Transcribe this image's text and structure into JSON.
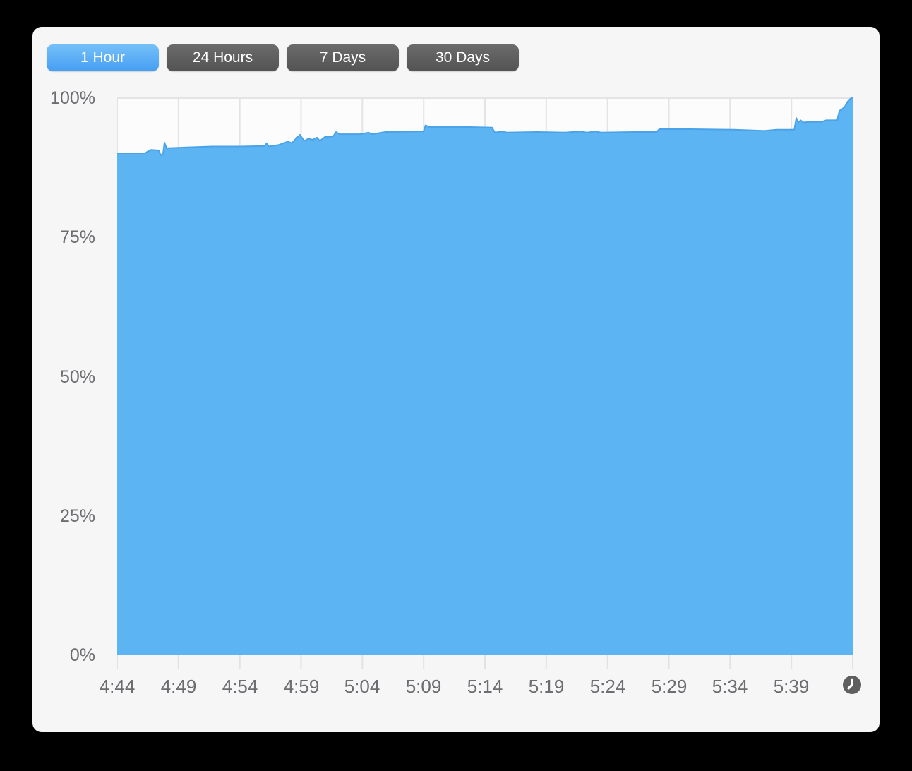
{
  "tabs": {
    "items": [
      {
        "label": "1 Hour",
        "selected": true
      },
      {
        "label": "24 Hours",
        "selected": false
      },
      {
        "label": "7 Days",
        "selected": false
      },
      {
        "label": "30 Days",
        "selected": false
      }
    ]
  },
  "chart_data": {
    "type": "area",
    "title": "",
    "series_name": "percentage-over-time",
    "x_ticks": [
      "4:44",
      "4:49",
      "4:54",
      "4:59",
      "5:04",
      "5:09",
      "5:14",
      "5:19",
      "5:24",
      "5:29",
      "5:34",
      "5:39"
    ],
    "y_ticks_top_to_bottom": [
      "100%",
      "75%",
      "50%",
      "25%",
      "0%"
    ],
    "ylim": [
      0,
      100
    ],
    "xlim_minutes": [
      0,
      60
    ],
    "x_tick_interval_minutes": 5,
    "grid": "vertical-only",
    "points": [
      {
        "m": 0.0,
        "pct": 90.0
      },
      {
        "m": 2.25,
        "pct": 90.0
      },
      {
        "m": 2.59,
        "pct": 90.4
      },
      {
        "m": 2.76,
        "pct": 90.6
      },
      {
        "m": 3.4,
        "pct": 90.5
      },
      {
        "m": 3.57,
        "pct": 89.6
      },
      {
        "m": 3.74,
        "pct": 89.9
      },
      {
        "m": 3.86,
        "pct": 91.9
      },
      {
        "m": 4.03,
        "pct": 90.9
      },
      {
        "m": 5.12,
        "pct": 91.0
      },
      {
        "m": 7.72,
        "pct": 91.2
      },
      {
        "m": 10.02,
        "pct": 91.2
      },
      {
        "m": 12.03,
        "pct": 91.3
      },
      {
        "m": 12.21,
        "pct": 91.8
      },
      {
        "m": 12.38,
        "pct": 91.2
      },
      {
        "m": 13.19,
        "pct": 91.5
      },
      {
        "m": 13.94,
        "pct": 92.1
      },
      {
        "m": 14.22,
        "pct": 91.8
      },
      {
        "m": 14.63,
        "pct": 92.7
      },
      {
        "m": 14.91,
        "pct": 93.3
      },
      {
        "m": 15.26,
        "pct": 92.2
      },
      {
        "m": 15.6,
        "pct": 92.6
      },
      {
        "m": 15.95,
        "pct": 92.4
      },
      {
        "m": 16.3,
        "pct": 92.8
      },
      {
        "m": 16.53,
        "pct": 92.2
      },
      {
        "m": 16.93,
        "pct": 92.9
      },
      {
        "m": 17.62,
        "pct": 93.0
      },
      {
        "m": 17.85,
        "pct": 93.8
      },
      {
        "m": 18.14,
        "pct": 93.4
      },
      {
        "m": 19.81,
        "pct": 93.4
      },
      {
        "m": 20.5,
        "pct": 93.7
      },
      {
        "m": 20.79,
        "pct": 93.4
      },
      {
        "m": 21.88,
        "pct": 93.8
      },
      {
        "m": 24.99,
        "pct": 93.9
      },
      {
        "m": 25.16,
        "pct": 95.0
      },
      {
        "m": 25.45,
        "pct": 94.7
      },
      {
        "m": 28.45,
        "pct": 94.7
      },
      {
        "m": 30.58,
        "pct": 94.6
      },
      {
        "m": 30.81,
        "pct": 93.7
      },
      {
        "m": 31.44,
        "pct": 93.9
      },
      {
        "m": 31.79,
        "pct": 93.7
      },
      {
        "m": 34.21,
        "pct": 93.8
      },
      {
        "m": 36.51,
        "pct": 93.7
      },
      {
        "m": 37.78,
        "pct": 93.9
      },
      {
        "m": 38.35,
        "pct": 93.7
      },
      {
        "m": 38.99,
        "pct": 93.9
      },
      {
        "m": 39.5,
        "pct": 93.7
      },
      {
        "m": 42.27,
        "pct": 93.8
      },
      {
        "m": 44.0,
        "pct": 93.8
      },
      {
        "m": 44.23,
        "pct": 94.3
      },
      {
        "m": 46.88,
        "pct": 94.3
      },
      {
        "m": 50.33,
        "pct": 94.2
      },
      {
        "m": 52.81,
        "pct": 94.0
      },
      {
        "m": 53.79,
        "pct": 94.2
      },
      {
        "m": 55.23,
        "pct": 94.2
      },
      {
        "m": 55.4,
        "pct": 96.3
      },
      {
        "m": 55.57,
        "pct": 95.5
      },
      {
        "m": 55.75,
        "pct": 95.9
      },
      {
        "m": 55.98,
        "pct": 95.5
      },
      {
        "m": 56.38,
        "pct": 95.6
      },
      {
        "m": 57.47,
        "pct": 95.6
      },
      {
        "m": 57.82,
        "pct": 95.9
      },
      {
        "m": 58.74,
        "pct": 95.9
      },
      {
        "m": 58.91,
        "pct": 97.6
      },
      {
        "m": 59.14,
        "pct": 97.9
      },
      {
        "m": 59.37,
        "pct": 98.4
      },
      {
        "m": 59.6,
        "pct": 99.3
      },
      {
        "m": 59.77,
        "pct": 99.7
      },
      {
        "m": 60.0,
        "pct": 100.0
      }
    ],
    "colors": {
      "area": "#5db4f3",
      "line": "#4aa3e8",
      "grid": "#e4e4e6",
      "tick": "#e2e2e4",
      "plot_bg": "#fcfcfd",
      "selected_tab": "#55a9f5",
      "tab_gray": "#5d5d5d",
      "window_bg": "#f6f6f7",
      "axis_label": "#6d6d71",
      "clock_icon_bg": "#5f5f5f"
    }
  },
  "footer": {
    "clock_icon": "clock-icon"
  }
}
